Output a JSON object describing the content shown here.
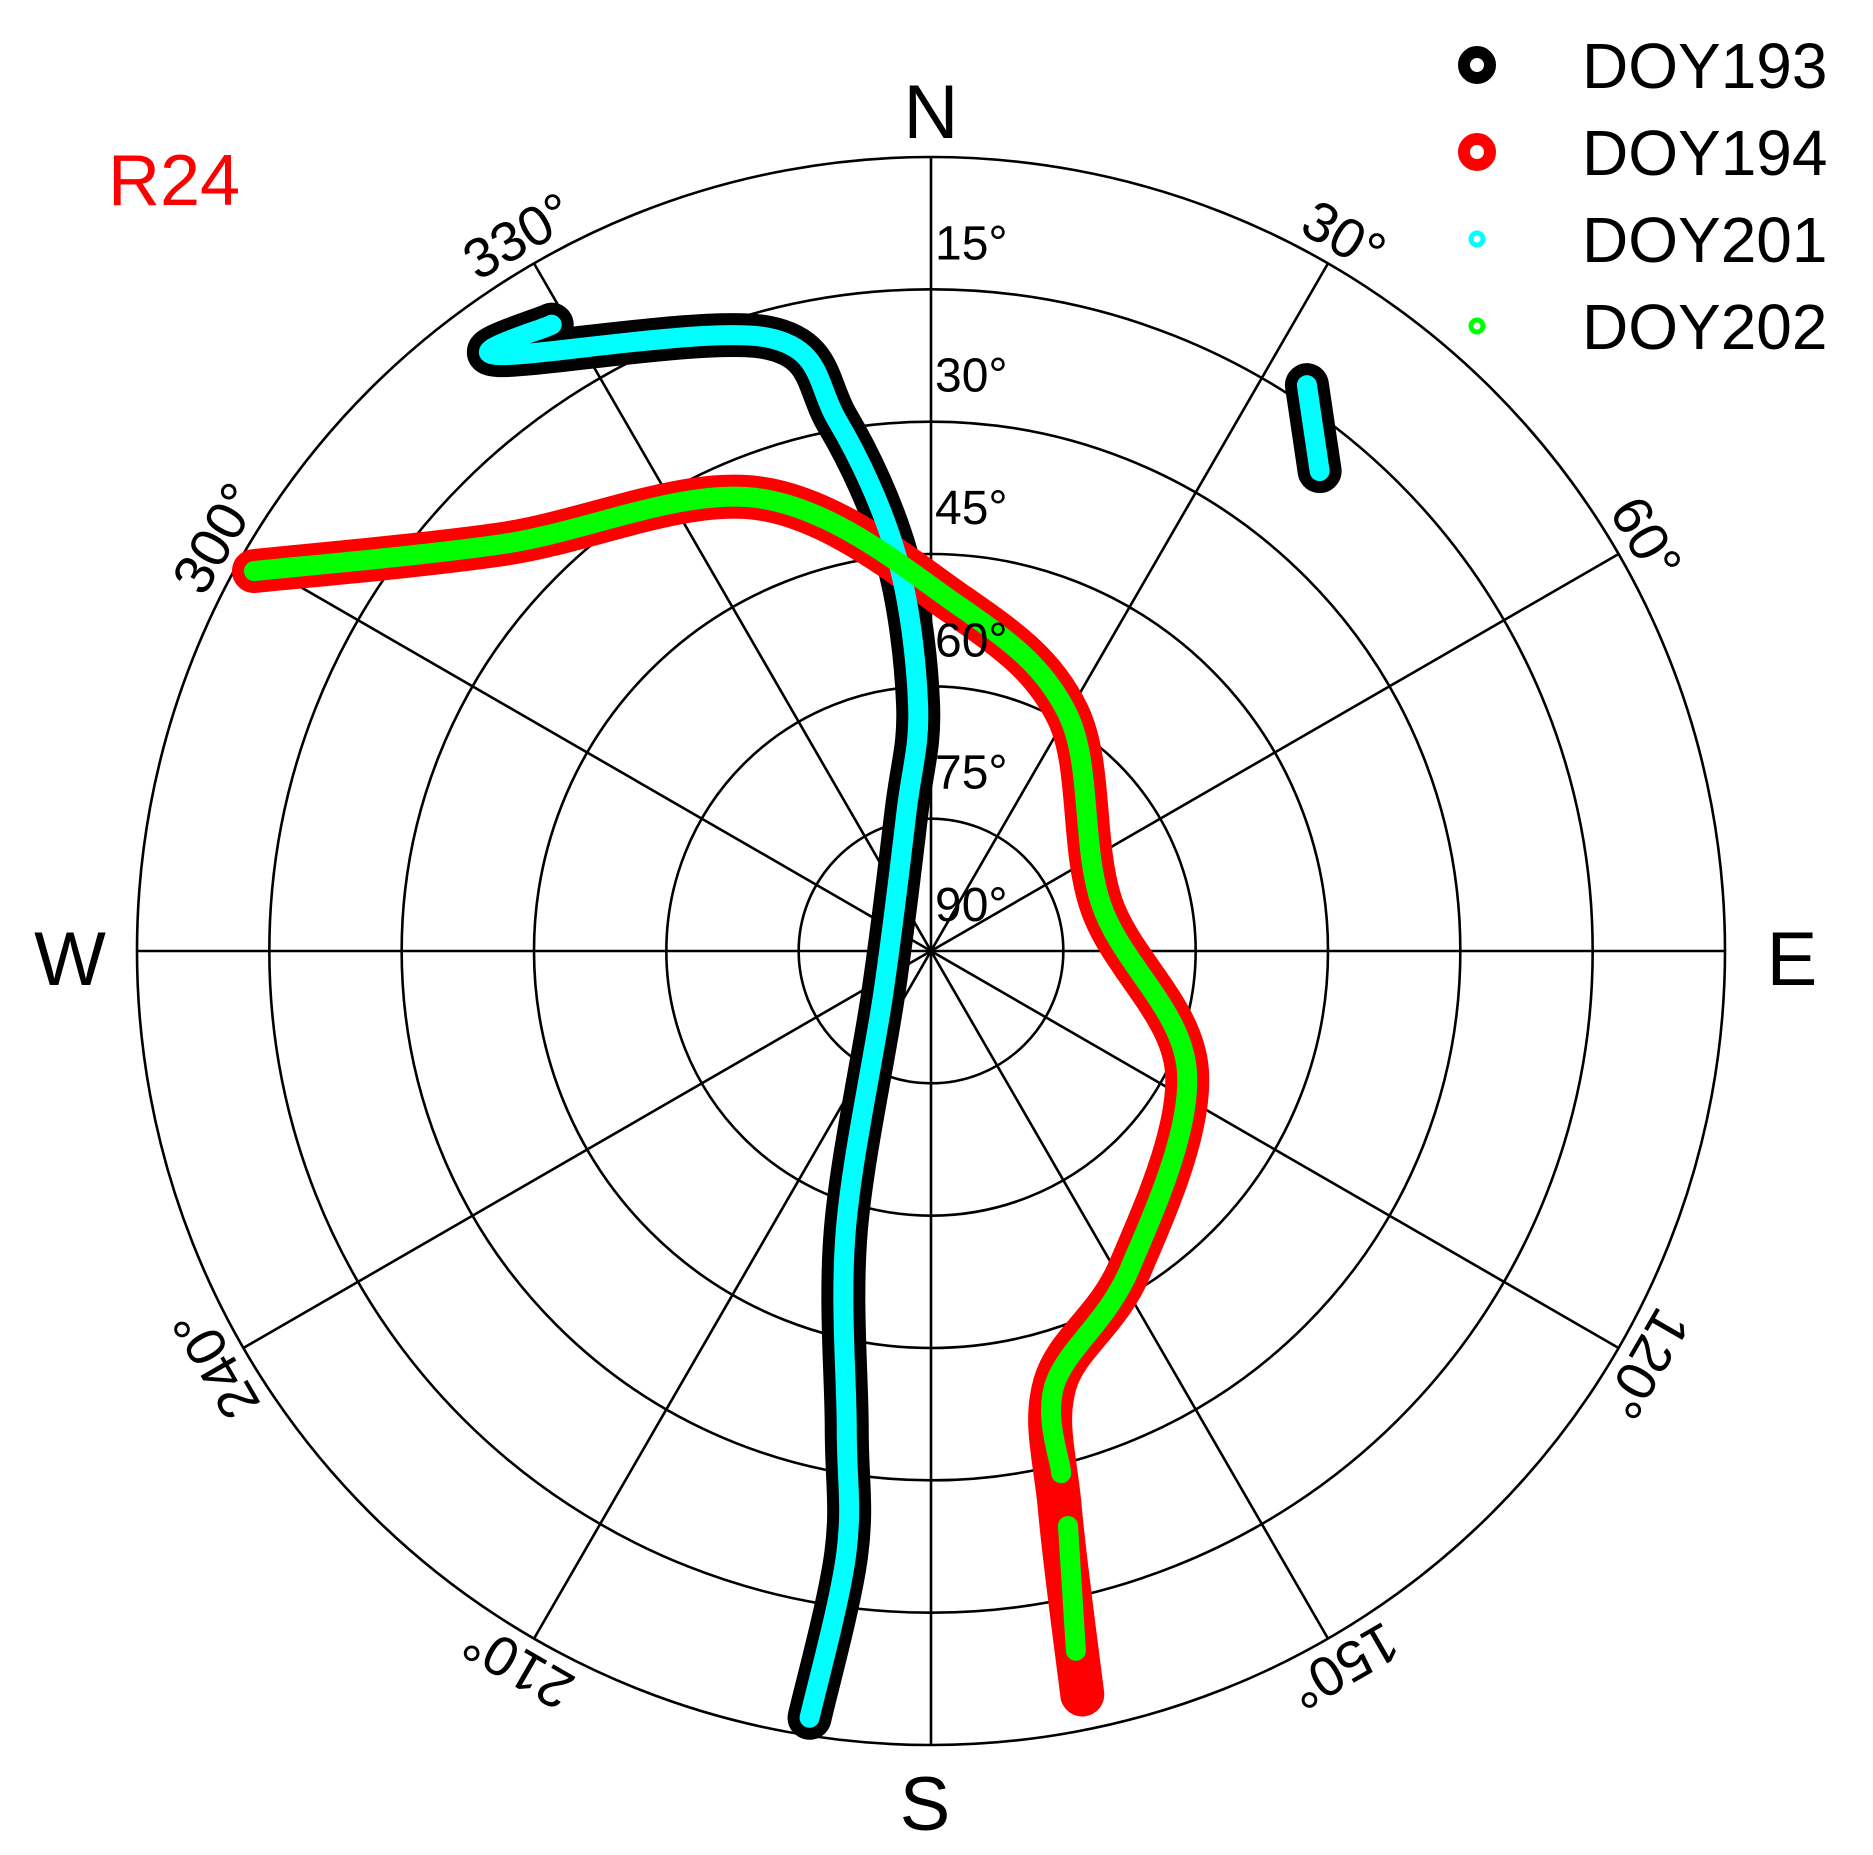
{
  "chart_data": {
    "type": "polar-skyplot",
    "tag": {
      "text": "R24",
      "color": "#ff0000"
    },
    "cardinals": {
      "N": "N",
      "E": "E",
      "S": "S",
      "W": "W"
    },
    "azimuth_labels": [
      {
        "az": 30,
        "text": "30°"
      },
      {
        "az": 60,
        "text": "60°"
      },
      {
        "az": 120,
        "text": "120°"
      },
      {
        "az": 150,
        "text": "150°"
      },
      {
        "az": 210,
        "text": "210°"
      },
      {
        "az": 240,
        "text": "240°"
      },
      {
        "az": 300,
        "text": "300°"
      },
      {
        "az": 330,
        "text": "330°"
      }
    ],
    "elevation_rings": [
      0,
      15,
      30,
      45,
      60,
      75
    ],
    "elevation_labels": [
      {
        "el": 15,
        "text": "15°"
      },
      {
        "el": 30,
        "text": "30°"
      },
      {
        "el": 45,
        "text": "45°"
      },
      {
        "el": 60,
        "text": "60°"
      },
      {
        "el": 75,
        "text": "75°"
      },
      {
        "el": 90,
        "text": "90°"
      }
    ],
    "spokes_deg_step": 30,
    "legend_position": "top-right",
    "series": [
      {
        "name": "DOY193",
        "color": "#000000",
        "width": 44,
        "segments": [
          [
            [
              328.8,
              7
            ],
            [
              324,
              6.5
            ],
            [
              345,
              18
            ],
            [
              350,
              29
            ],
            [
              355,
              45
            ],
            [
              357,
              62
            ],
            [
              350,
              74
            ],
            [
              230,
              83
            ],
            [
              197,
              57
            ],
            [
              190,
              35
            ],
            [
              188,
              21
            ],
            [
              189,
              2
            ]
          ],
          [
            [
              33.6,
              13
            ],
            [
              39,
              20
            ]
          ]
        ]
      },
      {
        "name": "DOY194",
        "color": "#ff0000",
        "width": 44,
        "segments": [
          [
            [
              299.3,
              2
            ],
            [
              313.5,
              23
            ],
            [
              339,
              35
            ],
            [
              4,
              50.5
            ],
            [
              30,
              59
            ],
            [
              74.5,
              70
            ],
            [
              115,
              58
            ],
            [
              148,
              47.5
            ],
            [
              164,
              39
            ],
            [
              167,
              25
            ],
            [
              168.5,
              4
            ]
          ]
        ]
      },
      {
        "name": "DOY201",
        "color": "#00ffff",
        "width": 20,
        "segments": [
          [
            [
              328.8,
              7
            ],
            [
              324,
              6.5
            ],
            [
              345,
              18
            ],
            [
              350,
              29
            ],
            [
              355,
              45
            ],
            [
              357,
              62
            ],
            [
              350,
              74
            ],
            [
              230,
              83
            ],
            [
              197,
              57
            ],
            [
              190,
              35
            ],
            [
              188,
              21
            ],
            [
              189,
              2
            ]
          ],
          [
            [
              33.6,
              13
            ],
            [
              39,
              20
            ]
          ]
        ]
      },
      {
        "name": "DOY202",
        "color": "#00ff00",
        "width": 20,
        "segments": [
          [
            [
              299.3,
              2
            ],
            [
              313.5,
              23
            ],
            [
              339,
              35
            ],
            [
              4,
              50.5
            ],
            [
              30,
              59
            ],
            [
              74.5,
              70
            ],
            [
              115,
              58
            ],
            [
              148,
              47.5
            ],
            [
              164,
              39
            ],
            [
              166,
              29
            ]
          ],
          [
            [
              166.6,
              23
            ],
            [
              168.3,
              9
            ]
          ]
        ]
      }
    ]
  }
}
